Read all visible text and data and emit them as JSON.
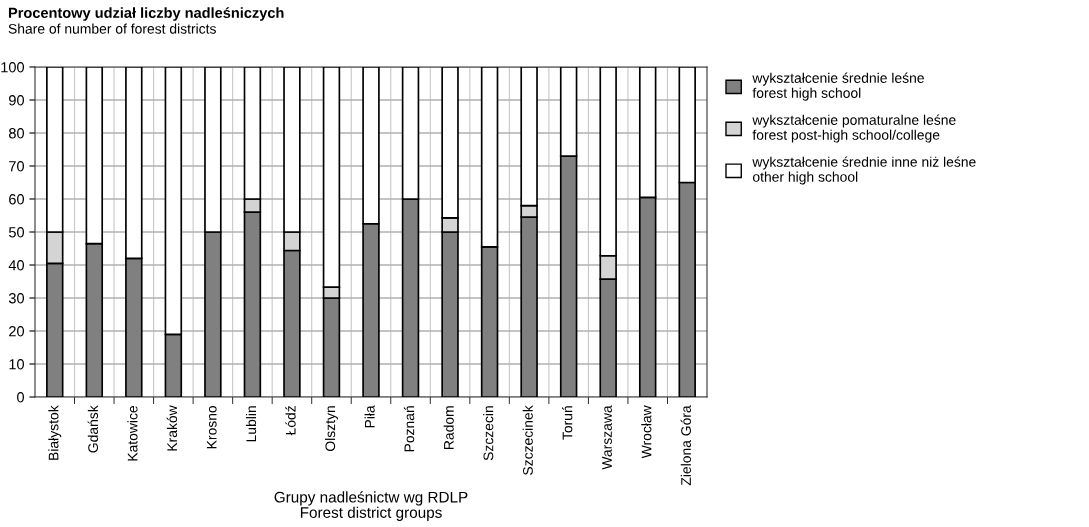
{
  "chart_data": {
    "type": "bar",
    "stacked": true,
    "title": "Procentowy udział liczby nadleśniczych",
    "subtitle": "Share of number of forest districts",
    "xlabel": "Grupy nadleśnictw wg RDLP\nForest district groups",
    "categories": [
      "Białystok",
      "Gdańsk",
      "Katowice",
      "Kraków",
      "Krosno",
      "Lublin",
      "Łódź",
      "Olsztyn",
      "Piła",
      "Poznań",
      "Radom",
      "Szczecin",
      "Szczecinek",
      "Toruń",
      "Warszawa",
      "Wrocław",
      "Zielona Góra"
    ],
    "series": [
      {
        "name": "wykształcenie średnie leśne\nforest high school",
        "color": "#808080",
        "values": [
          40.5,
          46.5,
          42,
          19,
          50,
          56,
          44.4,
          30,
          52.5,
          60,
          50,
          45.5,
          54.5,
          73,
          35.7,
          60.5,
          65
        ]
      },
      {
        "name": "wykształcenie pomaturalne leśne\nforest post-high school/college",
        "color": "#d4d4d4",
        "values": [
          9.5,
          null,
          null,
          null,
          null,
          4,
          5.6,
          3.3,
          null,
          null,
          4.3,
          null,
          3.5,
          null,
          7.1,
          null,
          null
        ]
      },
      {
        "name": "wykształcenie średnie inne niż leśne\nother high school",
        "color": "#ffffff",
        "values": [
          50,
          53.5,
          58,
          81,
          50,
          40,
          50,
          66.7,
          47.5,
          40,
          45.7,
          54.5,
          42,
          27,
          57.2,
          39.5,
          35
        ]
      }
    ],
    "ylim": [
      0,
      100
    ],
    "yticks": [
      0,
      10,
      20,
      30,
      40,
      50,
      60,
      70,
      80,
      90,
      100
    ],
    "grid": true,
    "legend": "right"
  }
}
